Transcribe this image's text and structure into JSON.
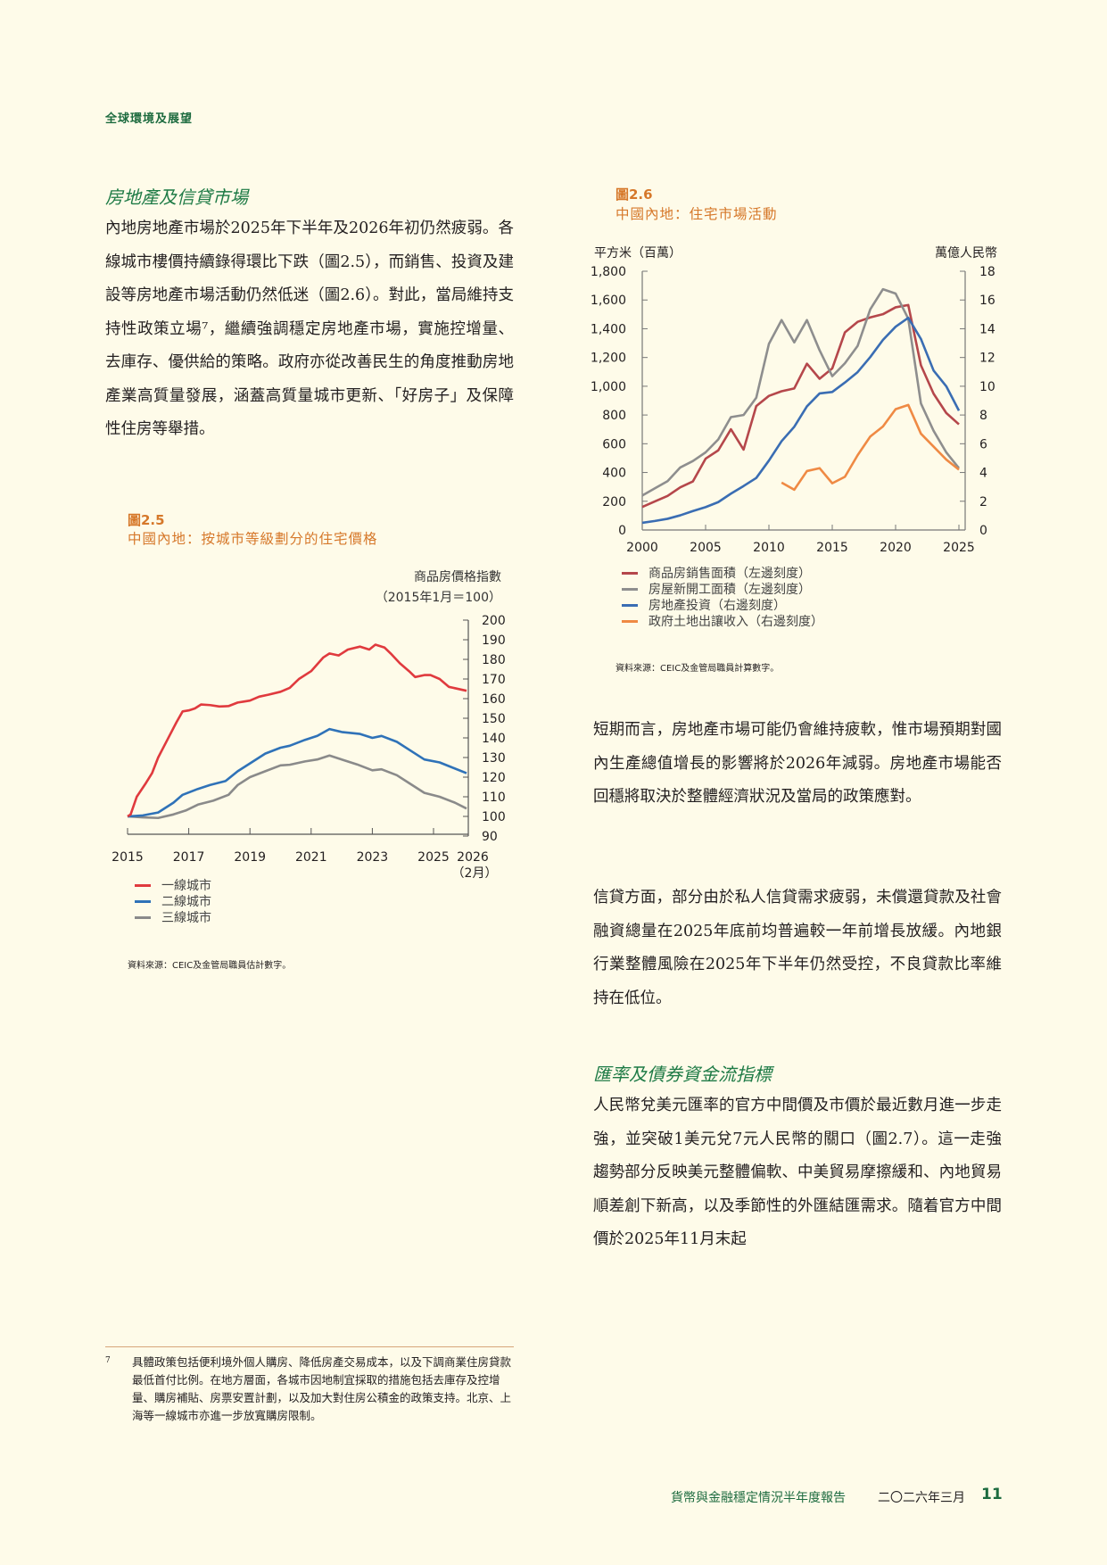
{
  "running_header": "全球環境及展望",
  "left": {
    "section_title": "房地產及信貸市場",
    "paragraph": "內地房地產市場於2025年下半年及2026年初仍然疲弱。各線城市樓價持續錄得環比下跌（圖2.5），而銷售、投資及建設等房地產市場活動仍然低迷（圖2.6）。對此，當局維持支持性政策立場⁷，繼續強調穩定房地產市場，實施控增量、去庫存、優供給的策略。政府亦從改善民生的角度推動房地產業高質量發展，涵蓋高質量城市更新、「好房子」及保障性住房等舉措。",
    "footnote_no": "7",
    "footnote": "具體政策包括便利境外個人購房、降低房產交易成本，以及下調商業住房貸款最低首付比例。在地方層面，各城市因地制宜採取的措施包括去庫存及控增量、購房補貼、房票安置計劃，以及加大對住房公積金的政策支持。北京、上海等一線城市亦進一步放寬購房限制。"
  },
  "fig25": {
    "number": "圖2.5",
    "title": "中國內地：按城市等級劃分的住宅價格",
    "source": "資料來源：CEIC及金管局職員估計數字。"
  },
  "fig26": {
    "number": "圖2.6",
    "title": "中國內地：住宅市場活動",
    "source": "資料來源：CEIC及金管局職員計算數字。"
  },
  "right": {
    "p1": "短期而言，房地產市場可能仍會維持疲軟，惟市場預期對國內生產總值增長的影響將於2026年減弱。房地產市場能否回穩將取決於整體經濟狀況及當局的政策應對。",
    "p2": "信貸方面，部分由於私人信貸需求疲弱，未償還貸款及社會融資總量在2025年底前均普遍較一年前增長放緩。內地銀行業整體風險在2025年下半年仍然受控，不良貸款比率維持在低位。",
    "section_title": "匯率及債券資金流指標",
    "p3": "人民幣兌美元匯率的官方中間價及市價於最近數月進一步走強，並突破1美元兌7元人民幣的關口（圖2.7）。這一走強趨勢部分反映美元整體偏軟、中美貿易摩擦緩和、內地貿易順差創下新高，以及季節性的外匯結匯需求。隨着官方中間價於2025年11月末起"
  },
  "footer": {
    "report": "貨幣與金融穩定情況半年度報告",
    "date": "二〇二六年三月",
    "page": "11"
  },
  "chart_data": [
    {
      "type": "line",
      "ylabel": "商品房價格指數（2015年1月＝100）",
      "ylim": [
        90,
        200
      ],
      "yticks": [
        90,
        100,
        110,
        120,
        130,
        140,
        150,
        160,
        170,
        180,
        190,
        200
      ],
      "xlim": [
        2015,
        2026.1
      ],
      "xticks": [
        "2015",
        "2017",
        "2019",
        "2021",
        "2023",
        "2025"
      ],
      "xtick_last": "2026",
      "xtick_last_sub": "（2月）",
      "y_axis_side": "right",
      "series": [
        {
          "name": "一線城市",
          "color": "#e03a3e",
          "x": [
            2015,
            2015.1,
            2015.3,
            2015.6,
            2015.8,
            2016,
            2016.3,
            2016.6,
            2016.8,
            2017,
            2017.2,
            2017.4,
            2017.7,
            2018,
            2018.3,
            2018.6,
            2018.8,
            2019,
            2019.3,
            2019.6,
            2020,
            2020.3,
            2020.6,
            2021,
            2021.4,
            2021.6,
            2021.9,
            2022.2,
            2022.6,
            2022.9,
            2023.1,
            2023.4,
            2023.6,
            2023.9,
            2024.2,
            2024.4,
            2024.7,
            2024.9,
            2025.2,
            2025.5,
            2026.08
          ],
          "y": [
            100,
            101,
            110,
            117,
            122,
            130,
            139,
            148,
            153.5,
            154,
            155,
            157,
            156.7,
            156,
            156.2,
            158,
            158.5,
            159,
            161,
            162,
            163.5,
            165.5,
            170,
            174,
            181,
            183,
            182,
            185,
            186.5,
            185,
            187.5,
            186,
            183,
            178,
            174,
            171,
            172,
            172,
            170,
            166,
            164
          ]
        },
        {
          "name": "二線城市",
          "color": "#2f72b8",
          "x": [
            2015,
            2015.5,
            2016,
            2016.5,
            2016.8,
            2017.3,
            2017.7,
            2018.2,
            2018.6,
            2019,
            2019.5,
            2020,
            2020.3,
            2020.8,
            2021.2,
            2021.6,
            2022,
            2022.6,
            2023,
            2023.3,
            2023.8,
            2024.2,
            2024.7,
            2025.2,
            2025.6,
            2026.08
          ],
          "y": [
            100,
            100.5,
            102,
            107,
            111,
            114,
            116,
            118,
            123,
            127,
            132,
            135,
            136,
            139,
            141,
            144.5,
            143,
            142,
            140,
            141,
            138,
            134,
            129,
            127.5,
            125,
            122
          ]
        },
        {
          "name": "三線城市",
          "color": "#8a8a8a",
          "x": [
            2015,
            2015.5,
            2016,
            2016.5,
            2016.9,
            2017.3,
            2017.8,
            2018.3,
            2018.6,
            2019,
            2019.5,
            2020,
            2020.3,
            2020.8,
            2021.2,
            2021.6,
            2022,
            2022.5,
            2023,
            2023.3,
            2023.8,
            2024.2,
            2024.7,
            2025.2,
            2025.7,
            2026.08
          ],
          "y": [
            100,
            99.5,
            99.2,
            101,
            103,
            106,
            108,
            111,
            116,
            120,
            123,
            126,
            126.3,
            128,
            129,
            131,
            129,
            126.5,
            123.5,
            124,
            121,
            117,
            112,
            110,
            107,
            104
          ]
        }
      ]
    },
    {
      "type": "line",
      "ylabel_left": "平方米（百萬）",
      "ylabel_right": "萬億人民幣",
      "ylim_left": [
        0,
        1800
      ],
      "ylim_right": [
        0,
        18
      ],
      "yticks_left": [
        "0",
        "200",
        "400",
        "600",
        "800",
        "1,000",
        "1,200",
        "1,400",
        "1,600",
        "1,800"
      ],
      "yticks_right": [
        "0",
        "2",
        "4",
        "6",
        "8",
        "10",
        "12",
        "14",
        "16",
        "18"
      ],
      "xlim": [
        2000,
        2025.3
      ],
      "xticks": [
        "2000",
        "2005",
        "2010",
        "2015",
        "2020",
        "2025"
      ],
      "series": [
        {
          "name": "商品房銷售面積（左邊刻度）",
          "axis": "left",
          "color": "#b5474b",
          "x_start": 2000,
          "y": [
            160,
            199,
            237,
            297,
            338,
            496,
            554,
            701,
            559,
            862,
            933,
            965,
            985,
            1157,
            1052,
            1124,
            1375,
            1448,
            1479,
            1501,
            1549,
            1565,
            1146,
            948,
            814,
            735
          ]
        },
        {
          "name": "房屋新開工面積（左邊刻度）",
          "axis": "left",
          "color": "#8e8e8e",
          "x_start": 2000,
          "y": [
            240,
            290,
            340,
            435,
            480,
            540,
            630,
            785,
            800,
            920,
            1295,
            1460,
            1305,
            1460,
            1250,
            1070,
            1160,
            1280,
            1535,
            1675,
            1645,
            1470,
            880,
            690,
            540,
            430
          ]
        },
        {
          "name": "房地產投資（右邊刻度）",
          "axis": "right",
          "color": "#3a6db3",
          "x_start": 2000,
          "y": [
            0.5,
            0.63,
            0.78,
            1.02,
            1.32,
            1.59,
            1.94,
            2.53,
            3.06,
            3.62,
            4.83,
            6.18,
            7.18,
            8.6,
            9.5,
            9.6,
            10.26,
            10.98,
            12.03,
            13.22,
            14.14,
            14.76,
            13.29,
            11.09,
            10.0,
            8.3
          ]
        },
        {
          "name": "政府土地出讓收入（右邊刻度）",
          "axis": "right",
          "color": "#ef8a44",
          "x_start": 2011,
          "y": [
            3.3,
            2.8,
            4.1,
            4.3,
            3.25,
            3.7,
            5.2,
            6.5,
            7.2,
            8.4,
            8.7,
            6.7,
            5.8,
            4.9,
            4.2
          ]
        }
      ]
    }
  ]
}
